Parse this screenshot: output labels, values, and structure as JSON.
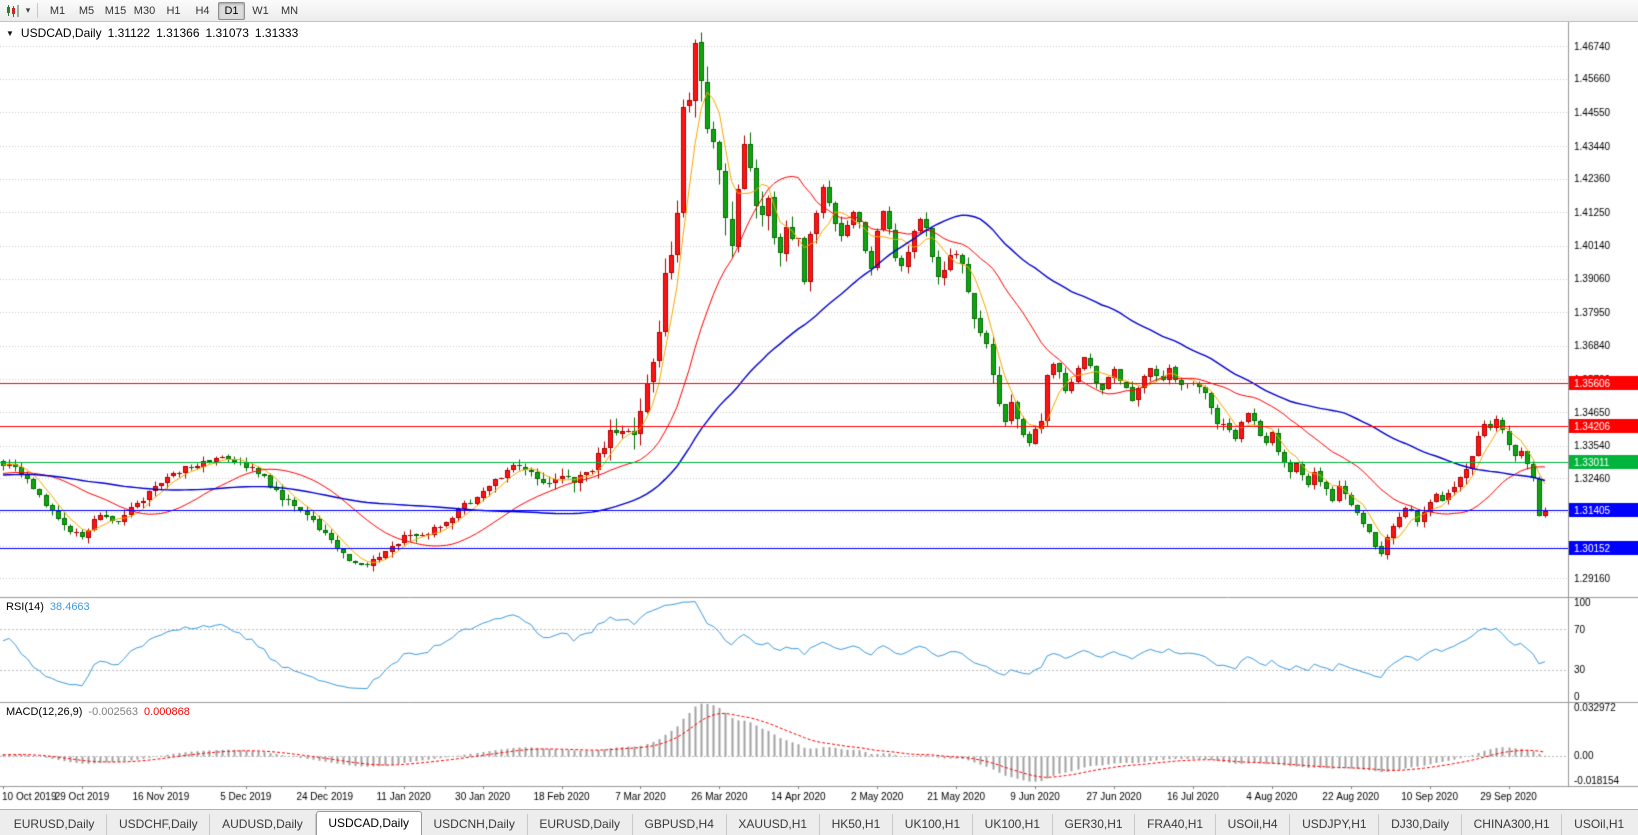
{
  "toolbar": {
    "icons": [
      {
        "name": "chart-type-icon"
      },
      {
        "name": "dropdown-arrow-icon",
        "glyph": "▾"
      }
    ],
    "timeframes": [
      "M1",
      "M5",
      "M15",
      "M30",
      "H1",
      "H4",
      "D1",
      "W1",
      "MN"
    ],
    "active_timeframe": "D1"
  },
  "chart": {
    "symbol_period": "USDCAD,Daily",
    "window_icon_glyph": "▼",
    "open": "1.31122",
    "high": "1.31366",
    "low": "1.31073",
    "close": "1.31333",
    "y_ticks": [
      "1.46740",
      "1.45660",
      "1.44550",
      "1.43440",
      "1.42360",
      "1.41250",
      "1.40140",
      "1.39060",
      "1.37950",
      "1.36840",
      "1.35730",
      "1.34650",
      "1.33540",
      "1.32460",
      "1.31350",
      "1.30240",
      "1.29160"
    ],
    "date_ticks": [
      "10 Oct 2019",
      "29 Oct 2019",
      "16 Nov 2019",
      "5 Dec 2019",
      "24 Dec 2019",
      "11 Jan 2020",
      "30 Jan 2020",
      "18 Feb 2020",
      "7 Mar 2020",
      "26 Mar 2020",
      "14 Apr 2020",
      "2 May 2020",
      "21 May 2020",
      "9 Jun 2020",
      "27 Jun 2020",
      "16 Jul 2020",
      "4 Aug 2020",
      "22 Aug 2020",
      "10 Sep 2020",
      "29 Sep 2020"
    ],
    "levels": [
      {
        "label": "1.35606",
        "price": 1.35606,
        "color": "#ff0000"
      },
      {
        "label": "1.34206",
        "price": 1.34206,
        "color": "#ff0000"
      },
      {
        "label": "1.33011",
        "price": 1.33011,
        "color": "#00b43c"
      },
      {
        "label": "1.31405",
        "price": 1.31405,
        "color": "#0000ff"
      },
      {
        "label": "1.30152",
        "price": 1.30152,
        "color": "#0000ff"
      }
    ]
  },
  "rsi": {
    "label": "RSI(14)",
    "value": "38.4663",
    "ticks": [
      "100",
      "70",
      "30",
      "0"
    ],
    "tick_values": [
      100,
      70,
      30,
      0
    ],
    "levels": [
      70,
      30
    ],
    "color": "#3e9bde"
  },
  "macd": {
    "label": "MACD(12,26,9)",
    "value_main": "-0.002563",
    "value_signal": "0.000868",
    "value_main_color": "#808080",
    "value_signal_color": "#ff0000",
    "ticks": [
      "0.032972",
      "0.00",
      "-0.018154"
    ],
    "tick_values": [
      0.032972,
      0,
      -0.018154
    ],
    "max": 0.032972,
    "min": -0.018154,
    "hist_color": "#a0a0a0",
    "signal_color": "#ff0000"
  },
  "tabs": [
    "EURUSD,Daily",
    "USDCHF,Daily",
    "AUDUSD,Daily",
    "USDCAD,Daily",
    "USDCNH,Daily",
    "EURUSD,Daily",
    "GBPUSD,H4",
    "XAUUSD,H1",
    "HK50,H1",
    "UK100,H1",
    "UK100,H1",
    "GER30,H1",
    "FRA40,H1",
    "USOil,H4",
    "USDJPY,H1",
    "DJ30,Daily",
    "CHINA300,H1",
    "USOil,H1"
  ],
  "active_tab_index": 3,
  "chart_data": {
    "type": "candlestick",
    "symbol": "USDCAD",
    "timeframe": "Daily",
    "count": 255,
    "seed": 20201006,
    "price_max": 1.4754,
    "price_min": 1.2854,
    "warmup_count": 50,
    "warmup_anchors": [
      [
        -50,
        1.3255
      ],
      [
        -38,
        1.3225
      ],
      [
        -25,
        1.3295
      ],
      [
        -12,
        1.3235
      ],
      [
        -1,
        1.3298
      ]
    ],
    "anchors": [
      [
        0,
        1.3295
      ],
      [
        3,
        1.3265
      ],
      [
        6,
        1.3185
      ],
      [
        10,
        1.3085
      ],
      [
        13,
        1.306
      ],
      [
        16,
        1.3125
      ],
      [
        18,
        1.3095
      ],
      [
        22,
        1.3165
      ],
      [
        26,
        1.323
      ],
      [
        30,
        1.3285
      ],
      [
        34,
        1.3305
      ],
      [
        37,
        1.332
      ],
      [
        40,
        1.329
      ],
      [
        43,
        1.3245
      ],
      [
        46,
        1.3175
      ],
      [
        49,
        1.315
      ],
      [
        52,
        1.3085
      ],
      [
        54,
        1.304
      ],
      [
        57,
        1.298
      ],
      [
        60,
        1.2958
      ],
      [
        62,
        1.2995
      ],
      [
        66,
        1.305
      ],
      [
        70,
        1.3065
      ],
      [
        73,
        1.3105
      ],
      [
        76,
        1.3155
      ],
      [
        79,
        1.3205
      ],
      [
        82,
        1.3255
      ],
      [
        85,
        1.3295
      ],
      [
        88,
        1.325
      ],
      [
        90,
        1.3225
      ],
      [
        92,
        1.3255
      ],
      [
        94,
        1.3225
      ],
      [
        97,
        1.3285
      ],
      [
        100,
        1.3385
      ],
      [
        102,
        1.3425
      ],
      [
        104,
        1.339
      ],
      [
        106,
        1.356
      ],
      [
        107,
        1.366
      ],
      [
        108,
        1.3755
      ],
      [
        109,
        1.3925
      ],
      [
        110,
        1.3985
      ],
      [
        111,
        1.4105
      ],
      [
        112,
        1.4505
      ],
      [
        113,
        1.4465
      ],
      [
        114,
        1.466
      ],
      [
        115,
        1.456
      ],
      [
        116,
        1.4425
      ],
      [
        117,
        1.4355
      ],
      [
        118,
        1.4255
      ],
      [
        119,
        1.4105
      ],
      [
        120,
        1.4035
      ],
      [
        121,
        1.4205
      ],
      [
        122,
        1.4335
      ],
      [
        123,
        1.429
      ],
      [
        124,
        1.4155
      ],
      [
        125,
        1.4095
      ],
      [
        126,
        1.4165
      ],
      [
        127,
        1.4025
      ],
      [
        128,
        1.3985
      ],
      [
        129,
        1.4065
      ],
      [
        131,
        1.4025
      ],
      [
        132,
        1.3905
      ],
      [
        133,
        1.4055
      ],
      [
        135,
        1.4215
      ],
      [
        136,
        1.417
      ],
      [
        137,
        1.4085
      ],
      [
        138,
        1.4035
      ],
      [
        140,
        1.4125
      ],
      [
        141,
        1.4085
      ],
      [
        142,
        1.3995
      ],
      [
        143,
        1.3945
      ],
      [
        144,
        1.4075
      ],
      [
        145,
        1.4135
      ],
      [
        147,
        1.3985
      ],
      [
        148,
        1.3935
      ],
      [
        150,
        1.4055
      ],
      [
        151,
        1.4105
      ],
      [
        152,
        1.4065
      ],
      [
        153,
        1.3975
      ],
      [
        154,
        1.3905
      ],
      [
        156,
        1.3985
      ],
      [
        157,
        1.3995
      ],
      [
        158,
        1.3955
      ],
      [
        159,
        1.3875
      ],
      [
        160,
        1.3785
      ],
      [
        162,
        1.3685
      ],
      [
        163,
        1.3575
      ],
      [
        164,
        1.3505
      ],
      [
        165,
        1.3425
      ],
      [
        166,
        1.3485
      ],
      [
        167,
        1.3435
      ],
      [
        168,
        1.3395
      ],
      [
        169,
        1.3375
      ],
      [
        170,
        1.3415
      ],
      [
        171,
        1.3435
      ],
      [
        172,
        1.3575
      ],
      [
        173,
        1.3625
      ],
      [
        174,
        1.3585
      ],
      [
        175,
        1.3535
      ],
      [
        177,
        1.3605
      ],
      [
        178,
        1.3655
      ],
      [
        179,
        1.3625
      ],
      [
        180,
        1.3555
      ],
      [
        181,
        1.3535
      ],
      [
        183,
        1.3605
      ],
      [
        185,
        1.3545
      ],
      [
        186,
        1.3505
      ],
      [
        188,
        1.3575
      ],
      [
        189,
        1.3605
      ],
      [
        191,
        1.3575
      ],
      [
        192,
        1.3615
      ],
      [
        194,
        1.3545
      ],
      [
        196,
        1.3565
      ],
      [
        198,
        1.3535
      ],
      [
        199,
        1.3485
      ],
      [
        200,
        1.3415
      ],
      [
        201,
        1.3435
      ],
      [
        203,
        1.3385
      ],
      [
        205,
        1.3465
      ],
      [
        207,
        1.3395
      ],
      [
        208,
        1.3365
      ],
      [
        209,
        1.3395
      ],
      [
        210,
        1.3335
      ],
      [
        211,
        1.3305
      ],
      [
        212,
        1.3265
      ],
      [
        213,
        1.3295
      ],
      [
        215,
        1.3225
      ],
      [
        216,
        1.3265
      ],
      [
        218,
        1.3205
      ],
      [
        219,
        1.3175
      ],
      [
        220,
        1.3225
      ],
      [
        222,
        1.3165
      ],
      [
        223,
        1.3135
      ],
      [
        224,
        1.3105
      ],
      [
        225,
        1.3065
      ],
      [
        226,
        1.3025
      ],
      [
        227,
        1.2992
      ],
      [
        228,
        1.3045
      ],
      [
        230,
        1.3125
      ],
      [
        231,
        1.3155
      ],
      [
        233,
        1.3105
      ],
      [
        235,
        1.3165
      ],
      [
        236,
        1.3185
      ],
      [
        237,
        1.3165
      ],
      [
        239,
        1.3215
      ],
      [
        240,
        1.3245
      ],
      [
        241,
        1.3285
      ],
      [
        242,
        1.3325
      ],
      [
        243,
        1.3385
      ],
      [
        244,
        1.342
      ],
      [
        245,
        1.3405
      ],
      [
        246,
        1.3435
      ],
      [
        247,
        1.3395
      ],
      [
        248,
        1.3355
      ],
      [
        249,
        1.3325
      ],
      [
        250,
        1.3335
      ],
      [
        251,
        1.3295
      ],
      [
        252,
        1.3245
      ],
      [
        253,
        1.3115
      ],
      [
        254,
        1.3133
      ]
    ],
    "date_indices": [
      0,
      13,
      26,
      40,
      53,
      66,
      79,
      92,
      105,
      118,
      131,
      144,
      157,
      170,
      183,
      196,
      209,
      222,
      235,
      248
    ],
    "moving_averages": [
      {
        "period": 5,
        "color": "#f5a800",
        "width": 1
      },
      {
        "period": 20,
        "color": "#ff0000",
        "width": 1
      },
      {
        "period": 50,
        "color": "#0000cc",
        "width": 1.4
      }
    ],
    "style": {
      "bull_color": "#ff1414",
      "bull_border": "#b00000",
      "bear_color": "#10a510",
      "bear_border": "#006e00",
      "grid_color": "#cdcdcd",
      "pane_border_color": "#989898",
      "scale_text_color": "#000000"
    }
  }
}
